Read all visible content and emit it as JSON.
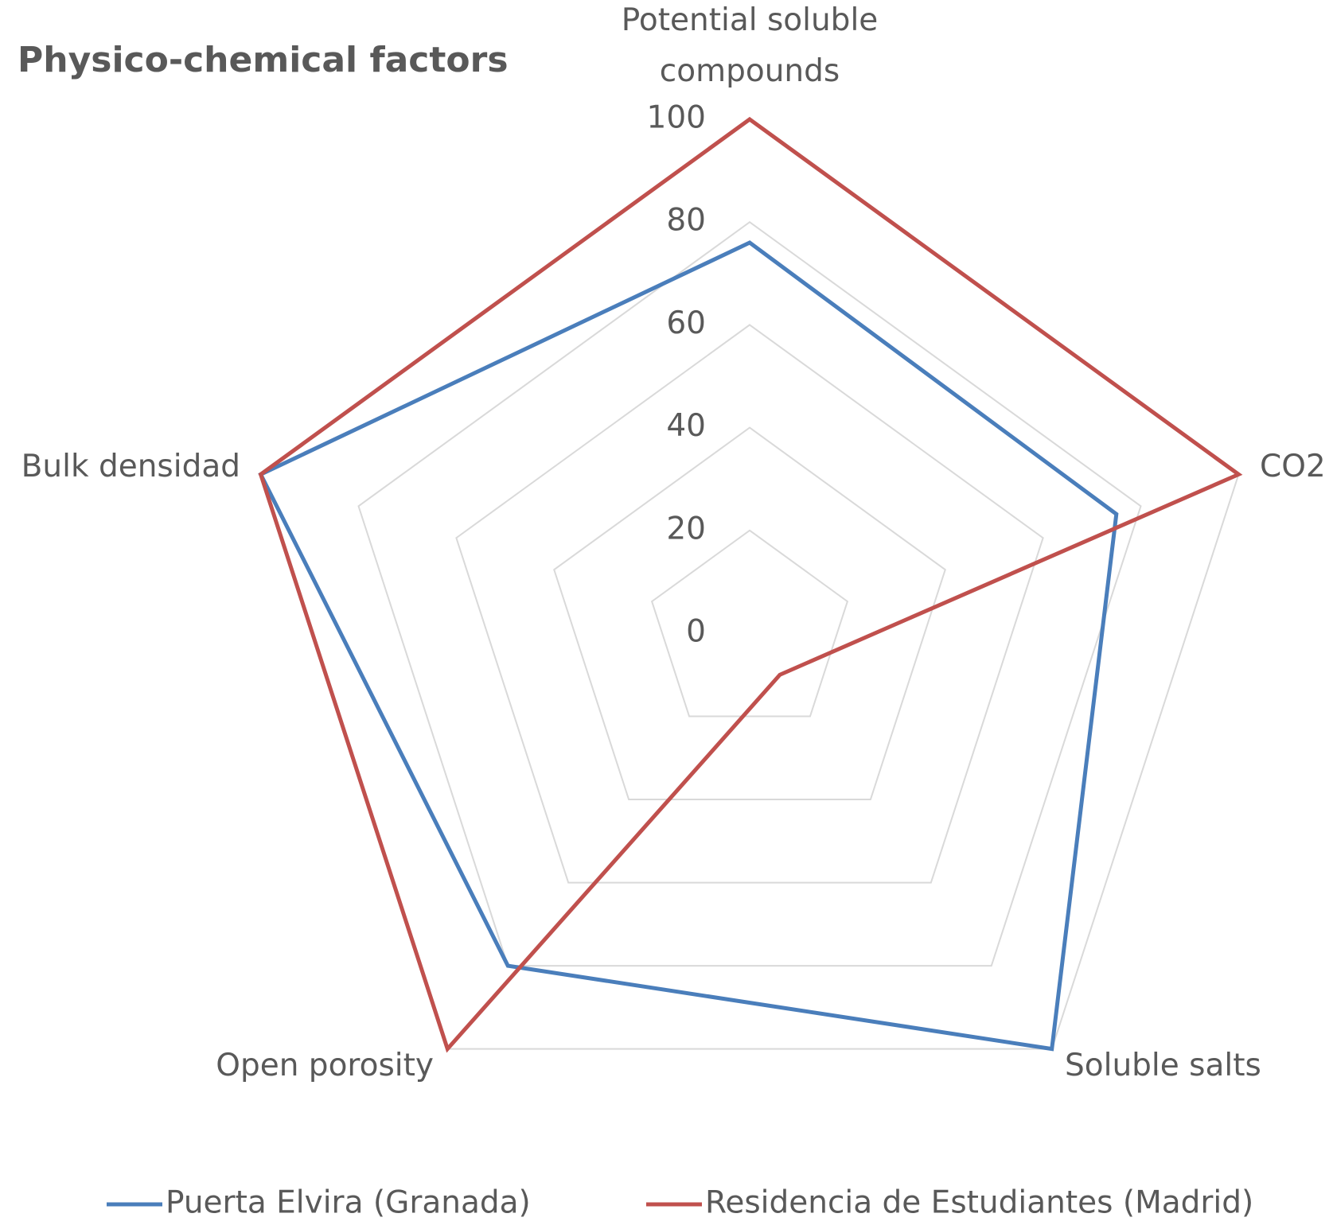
{
  "chart_data": {
    "type": "radar",
    "title": "Physico-chemical factors",
    "categories": [
      "Potential soluble compounds",
      "CO2",
      "Soluble salts",
      "Open porosity",
      "Bulk densidad"
    ],
    "series": [
      {
        "name": "Puerta Elvira (Granada)",
        "color": "#4a7ebb",
        "values": [
          76,
          75,
          100,
          80,
          100
        ]
      },
      {
        "name": "Residencia de Estudiantes (Madrid)",
        "color": "#c0504d",
        "values": [
          100,
          100,
          10,
          100,
          100
        ]
      }
    ],
    "ylim": [
      0,
      100
    ],
    "yticks": [
      0,
      20,
      40,
      60,
      80,
      100
    ],
    "grid": true,
    "legend": "bottom"
  }
}
